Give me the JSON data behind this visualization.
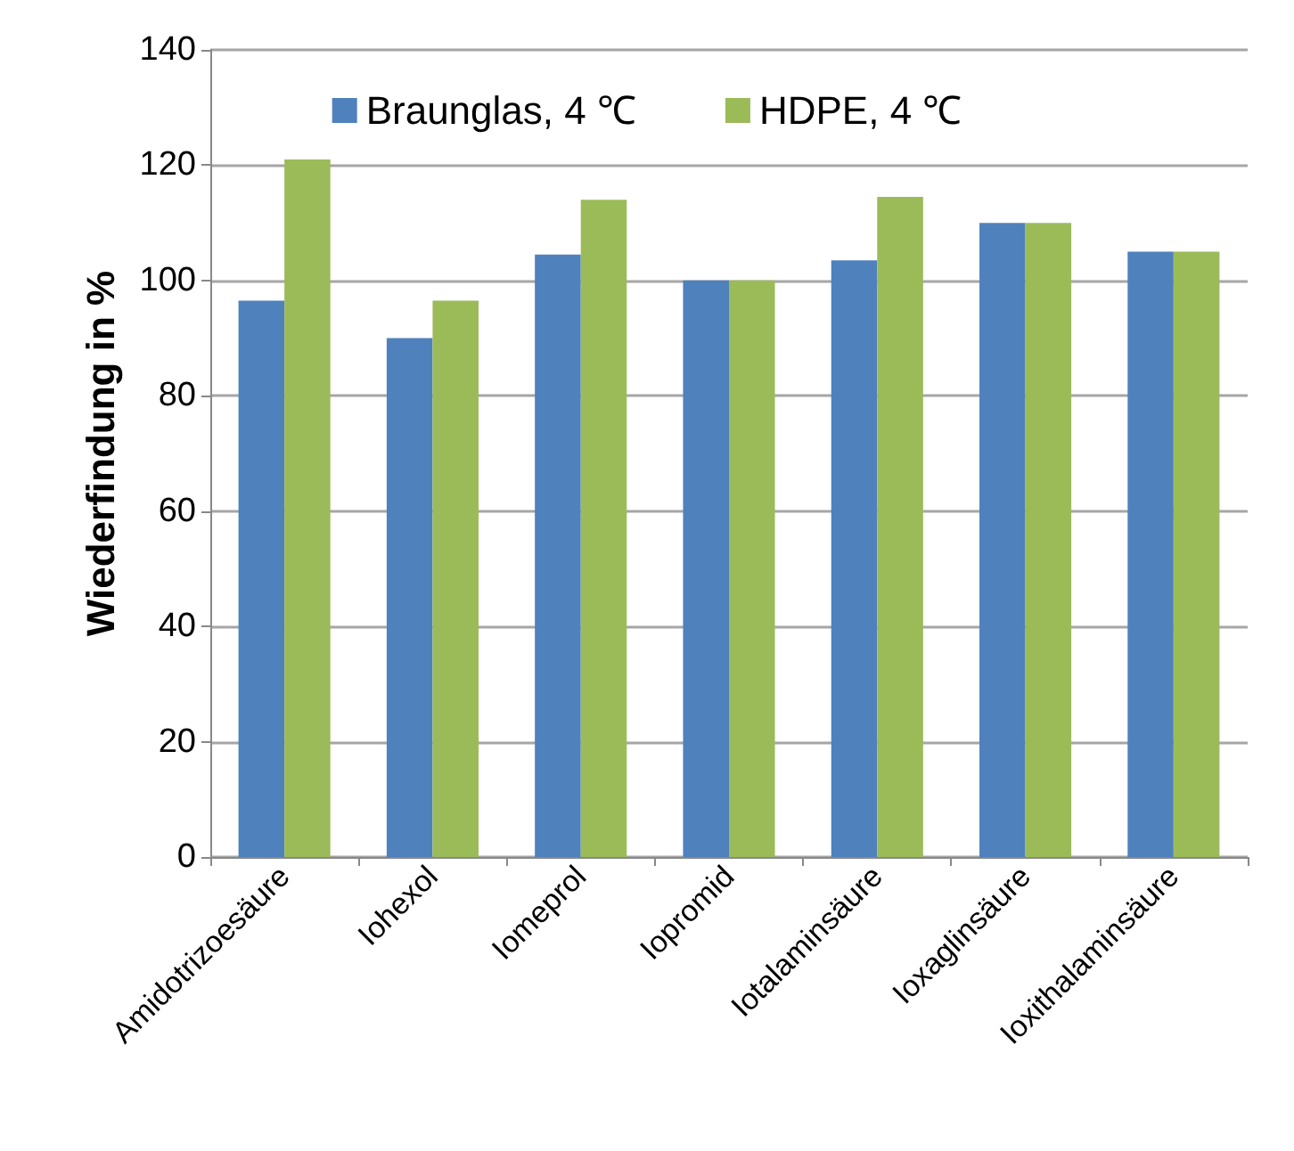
{
  "chart_data": {
    "type": "bar",
    "ylabel": "Wiederfindung in %",
    "categories": [
      "Amidotrizoesäure",
      "Iohexol",
      "Iomeprol",
      "Iopromid",
      "Iotalaminsäure",
      "Ioxaglinsäure",
      "Ioxithalaminsäure"
    ],
    "series": [
      {
        "name": "Braunglas, 4 ℃",
        "color": "#4f81bd",
        "values": [
          96.5,
          90,
          104.5,
          100,
          103.5,
          110,
          105
        ]
      },
      {
        "name": "HDPE, 4 ℃",
        "color": "#9bbb59",
        "values": [
          121,
          96.5,
          114,
          100,
          114.5,
          110,
          105
        ]
      }
    ],
    "ylim": [
      0,
      140
    ],
    "yticks": [
      0,
      20,
      40,
      60,
      80,
      100,
      120,
      140
    ],
    "grid": "y",
    "legend": "top"
  }
}
